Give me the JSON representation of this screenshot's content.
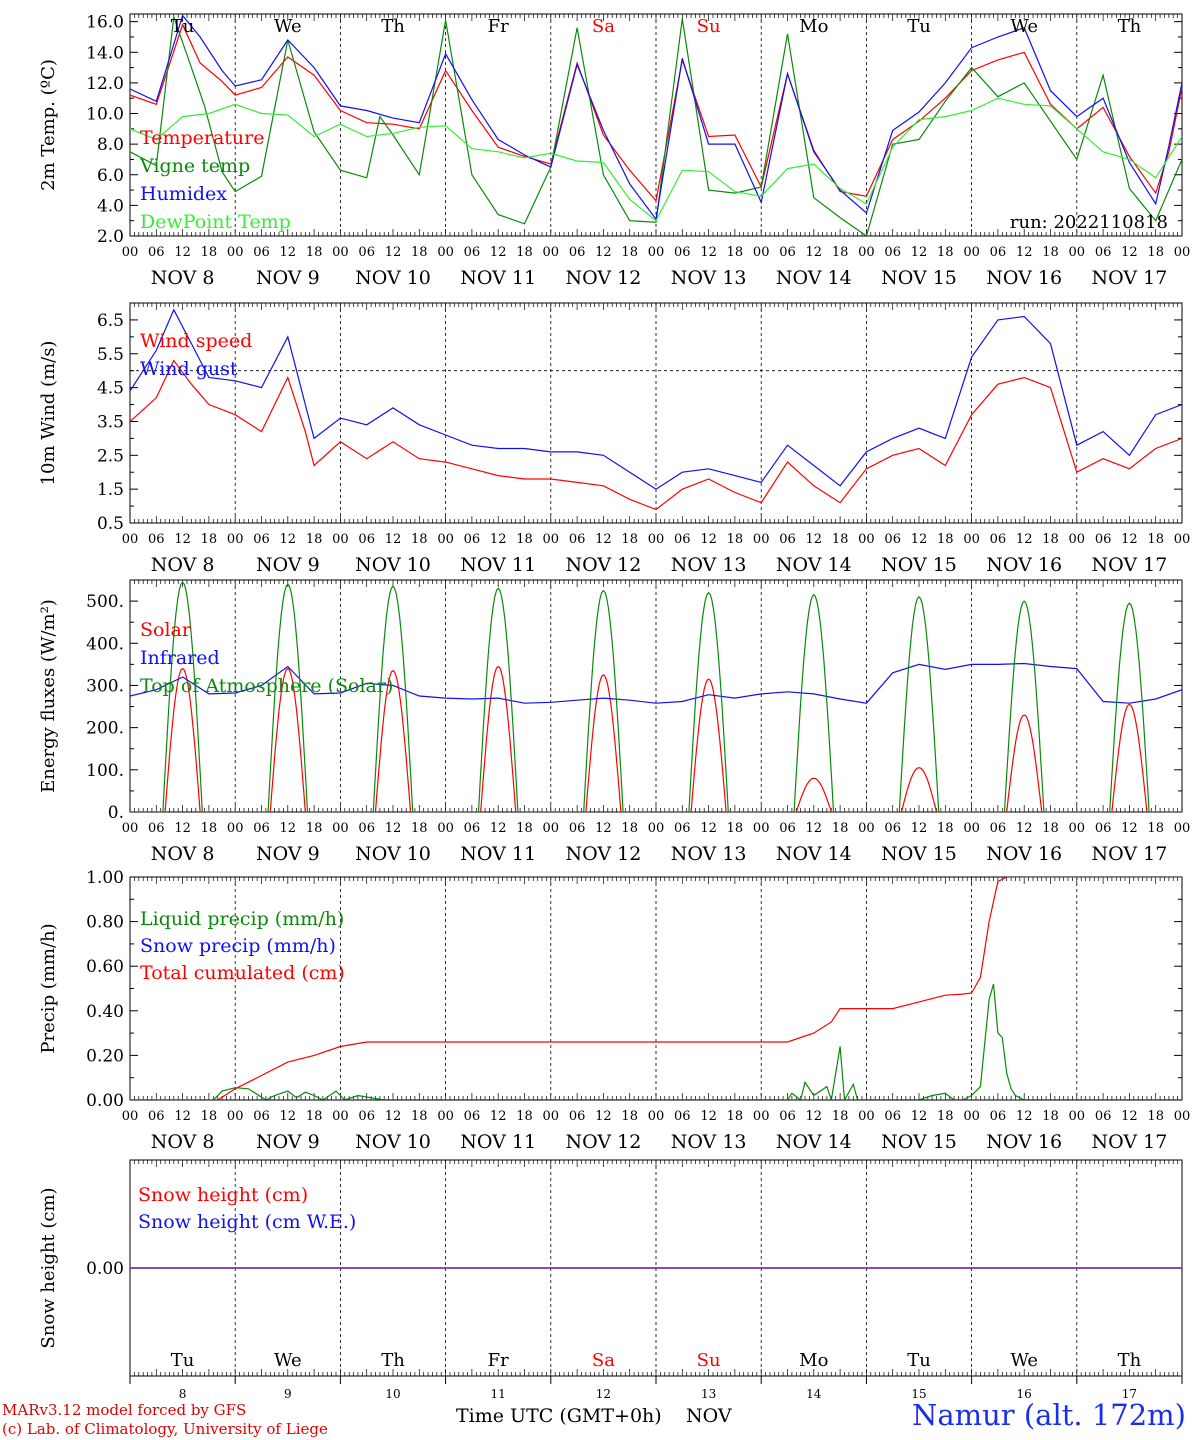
{
  "footer": {
    "credit_line1": "MARv3.12 model forced by GFS",
    "credit_line2": "(c) Lab. of Climatology, University of Liege",
    "x_axis_label": "Time UTC (GMT+0h)",
    "x_axis_month": "NOV",
    "station": "Namur (alt. 172m)"
  },
  "colors": {
    "red": "#ff0000",
    "green": "#0a8a0a",
    "blue": "#1010f0",
    "light_green": "#33ee33",
    "purple": "#8030b0",
    "weekend": "#ff0000"
  },
  "time_axis": {
    "tick_hours": [
      "00",
      "06",
      "12",
      "18"
    ],
    "date_labels": [
      "NOV  8",
      "NOV  9",
      "NOV 10",
      "NOV 11",
      "NOV 12",
      "NOV 13",
      "NOV 14",
      "NOV 15",
      "NOV 16",
      "NOV 17"
    ],
    "day_names": [
      "Tu",
      "We",
      "Th",
      "Fr",
      "Sa",
      "Su",
      "Mo",
      "Tu",
      "We",
      "Th"
    ],
    "weekend_days": [
      "Sa",
      "Su"
    ],
    "day_numbers": [
      "8",
      "9",
      "10",
      "11",
      "12",
      "13",
      "14",
      "15",
      "16",
      "17"
    ]
  },
  "chart_data": [
    {
      "type": "line",
      "id": "temperature",
      "ylabel": "2m Temp. (ºC)",
      "ylim": [
        2.0,
        16.5
      ],
      "yticks": [
        "2.0",
        "4.0",
        "6.0",
        "8.0",
        "10.0",
        "12.0",
        "14.0",
        "16.0"
      ],
      "ytick_values": [
        2,
        4,
        6,
        8,
        10,
        12,
        14,
        16
      ],
      "annotation": "run: 2022110818",
      "x_unit": "hours since NOV 8 00 UTC",
      "series": [
        {
          "name": "Temperature",
          "color": "#ff0000",
          "x": [
            0,
            6,
            12,
            16,
            21,
            24,
            30,
            36,
            42,
            48,
            54,
            60,
            66,
            72,
            78,
            84,
            90,
            96,
            102,
            108,
            114,
            120,
            126,
            132,
            138,
            144,
            150,
            156,
            162,
            168,
            174,
            180,
            186,
            192,
            198,
            204,
            210,
            216,
            222,
            228,
            234,
            237,
            240
          ],
          "y": [
            11.2,
            10.6,
            15.8,
            13.3,
            12.1,
            11.2,
            11.7,
            13.7,
            12.5,
            10.2,
            9.4,
            9.3,
            9.0,
            12.8,
            10.2,
            7.8,
            7.2,
            6.7,
            13.3,
            8.6,
            6.3,
            4.3,
            13.5,
            8.5,
            8.6,
            5.2,
            12.6,
            7.6,
            4.9,
            4.6,
            8.3,
            9.5,
            11.0,
            12.8,
            13.5,
            14.0,
            10.6,
            9.0,
            10.4,
            7.2,
            4.8,
            7.5,
            11.7
          ]
        },
        {
          "name": "Vigne temp",
          "color": "#0a8a0a",
          "x": [
            0,
            6,
            10,
            14,
            17,
            21,
            24,
            30,
            36,
            42,
            48,
            54,
            57,
            60,
            66,
            72,
            78,
            84,
            90,
            96,
            102,
            108,
            114,
            120,
            126,
            132,
            138,
            144,
            150,
            156,
            162,
            168,
            174,
            180,
            186,
            192,
            198,
            204,
            210,
            216,
            222,
            228,
            234,
            240
          ],
          "y": [
            7.5,
            6.6,
            16.3,
            13.0,
            10.5,
            6.2,
            4.9,
            5.9,
            14.8,
            8.8,
            6.3,
            5.8,
            9.8,
            8.6,
            6.0,
            16.1,
            6.0,
            3.4,
            2.8,
            6.5,
            15.6,
            6.0,
            3.0,
            2.9,
            16.2,
            5.0,
            4.8,
            5.2,
            15.2,
            4.5,
            3.2,
            2.0,
            8.0,
            8.3,
            10.8,
            13.0,
            11.1,
            12.0,
            9.5,
            7.0,
            12.5,
            5.1,
            3.0,
            7.0
          ]
        },
        {
          "name": "Humidex",
          "color": "#1010f0",
          "x": [
            0,
            6,
            12,
            16,
            21,
            24,
            30,
            36,
            42,
            48,
            54,
            60,
            66,
            72,
            78,
            84,
            90,
            96,
            102,
            108,
            114,
            120,
            126,
            132,
            138,
            144,
            150,
            156,
            162,
            168,
            174,
            180,
            186,
            192,
            198,
            204,
            210,
            216,
            222,
            228,
            234,
            237,
            240
          ],
          "y": [
            11.6,
            10.8,
            16.4,
            15.0,
            12.8,
            11.8,
            12.2,
            14.8,
            13.0,
            10.5,
            10.2,
            9.7,
            9.4,
            13.9,
            10.9,
            8.3,
            7.3,
            6.5,
            13.2,
            8.9,
            5.4,
            3.1,
            13.6,
            8.0,
            8.0,
            4.2,
            12.6,
            7.5,
            5.0,
            3.5,
            8.9,
            10.1,
            12.0,
            14.3,
            15.0,
            15.6,
            11.5,
            9.8,
            11.0,
            6.8,
            4.1,
            7.9,
            12.0
          ]
        },
        {
          "name": "DewPoint Temp",
          "color": "#33ee33",
          "x": [
            0,
            6,
            12,
            18,
            24,
            30,
            36,
            42,
            48,
            54,
            60,
            66,
            72,
            78,
            84,
            90,
            96,
            102,
            108,
            114,
            120,
            126,
            132,
            138,
            144,
            150,
            156,
            162,
            168,
            174,
            180,
            186,
            192,
            198,
            204,
            210,
            216,
            222,
            228,
            234,
            240
          ],
          "y": [
            9.0,
            8.3,
            9.8,
            10.0,
            10.6,
            10.0,
            9.9,
            8.5,
            9.3,
            8.5,
            8.7,
            9.1,
            9.2,
            7.7,
            7.5,
            7.1,
            7.4,
            6.9,
            6.8,
            4.4,
            3.0,
            6.3,
            6.2,
            4.9,
            4.6,
            6.4,
            6.7,
            5.1,
            4.1,
            7.8,
            9.6,
            9.8,
            10.2,
            11.0,
            10.6,
            10.5,
            9.0,
            7.5,
            7.0,
            5.8,
            8.5
          ]
        }
      ]
    },
    {
      "type": "line",
      "id": "wind",
      "ylabel": "10m Wind (m/s)",
      "ylim": [
        0.5,
        7.0
      ],
      "yticks": [
        "0.5",
        "1.5",
        "2.5",
        "3.5",
        "4.5",
        "5.5",
        "6.5"
      ],
      "ytick_values": [
        0.5,
        1.5,
        2.5,
        3.5,
        4.5,
        5.5,
        6.5
      ],
      "reference_line": 5.0,
      "x_unit": "hours since NOV 8 00 UTC",
      "series": [
        {
          "name": "Wind speed",
          "color": "#ff0000",
          "x": [
            0,
            6,
            10,
            14,
            18,
            24,
            30,
            36,
            40,
            42,
            48,
            54,
            60,
            66,
            72,
            78,
            84,
            90,
            96,
            102,
            108,
            114,
            120,
            126,
            132,
            138,
            144,
            150,
            156,
            162,
            168,
            174,
            180,
            186,
            192,
            198,
            204,
            210,
            216,
            222,
            228,
            234,
            240
          ],
          "y": [
            3.5,
            4.2,
            5.3,
            4.6,
            4.0,
            3.7,
            3.2,
            4.8,
            3.2,
            2.2,
            2.9,
            2.4,
            2.9,
            2.4,
            2.3,
            2.1,
            1.9,
            1.8,
            1.8,
            1.7,
            1.6,
            1.2,
            0.9,
            1.5,
            1.8,
            1.4,
            1.1,
            2.3,
            1.6,
            1.1,
            2.1,
            2.5,
            2.7,
            2.2,
            3.7,
            4.6,
            4.8,
            4.5,
            2.0,
            2.4,
            2.1,
            2.7,
            3.0
          ]
        },
        {
          "name": "Wind gust",
          "color": "#1010f0",
          "x": [
            0,
            6,
            10,
            14,
            18,
            24,
            30,
            36,
            40,
            42,
            48,
            54,
            60,
            66,
            72,
            78,
            84,
            90,
            96,
            102,
            108,
            114,
            120,
            126,
            132,
            138,
            144,
            150,
            156,
            162,
            168,
            174,
            180,
            186,
            192,
            198,
            204,
            210,
            216,
            222,
            228,
            234,
            240
          ],
          "y": [
            4.4,
            5.6,
            6.8,
            5.8,
            4.8,
            4.7,
            4.5,
            6.0,
            4.0,
            3.0,
            3.6,
            3.4,
            3.9,
            3.4,
            3.1,
            2.8,
            2.7,
            2.7,
            2.6,
            2.6,
            2.5,
            2.0,
            1.5,
            2.0,
            2.1,
            1.9,
            1.7,
            2.8,
            2.2,
            1.6,
            2.6,
            3.0,
            3.3,
            3.0,
            5.4,
            6.5,
            6.6,
            5.8,
            2.8,
            3.2,
            2.5,
            3.7,
            4.0
          ]
        }
      ]
    },
    {
      "type": "line",
      "id": "energy",
      "ylabel": "Energy fluxes (W/m²)",
      "ylim": [
        0,
        550
      ],
      "yticks": [
        "0.",
        "100.",
        "200.",
        "300.",
        "400.",
        "500."
      ],
      "ytick_values": [
        0,
        100,
        200,
        300,
        400,
        500
      ],
      "x_unit": "hours since NOV 8 00 UTC",
      "series": [
        {
          "name": "Solar",
          "color": "#ff0000",
          "kind": "daily_arch",
          "peak_hour": 12,
          "half_width_hours": 4.0,
          "daily_peaks": [
            340,
            340,
            335,
            345,
            325,
            315,
            80,
            105,
            230,
            255
          ]
        },
        {
          "name": "Infrared",
          "color": "#1010f0",
          "x": [
            0,
            6,
            12,
            18,
            24,
            30,
            36,
            42,
            48,
            54,
            60,
            66,
            72,
            78,
            84,
            90,
            96,
            102,
            108,
            114,
            120,
            126,
            132,
            138,
            144,
            150,
            156,
            162,
            168,
            174,
            180,
            186,
            192,
            198,
            204,
            210,
            216,
            222,
            228,
            234,
            240
          ],
          "y": [
            275,
            290,
            320,
            280,
            282,
            300,
            345,
            280,
            282,
            305,
            300,
            275,
            270,
            268,
            270,
            258,
            260,
            265,
            270,
            265,
            258,
            262,
            278,
            270,
            280,
            285,
            280,
            268,
            258,
            330,
            350,
            338,
            350,
            350,
            352,
            345,
            340,
            262,
            258,
            268,
            290
          ]
        },
        {
          "name": "Top of Atmosphere (Solar)",
          "color": "#0a8a0a",
          "kind": "daily_arch",
          "peak_hour": 12,
          "half_width_hours": 4.5,
          "daily_peaks": [
            545,
            540,
            535,
            530,
            525,
            520,
            515,
            510,
            500,
            495
          ]
        }
      ]
    },
    {
      "type": "line",
      "id": "precip",
      "ylabel": "Precip (mm/h)",
      "ylim": [
        0,
        1.0
      ],
      "yticks": [
        "0.00",
        "0.20",
        "0.40",
        "0.60",
        "0.80",
        "1.00"
      ],
      "ytick_values": [
        0,
        0.2,
        0.4,
        0.6,
        0.8,
        1.0
      ],
      "x_unit": "hours since NOV 8 00 UTC",
      "series": [
        {
          "name": "Liquid precip (mm/h)",
          "color": "#0a8a0a",
          "x": [
            0,
            19,
            21,
            24,
            27,
            31,
            33,
            36,
            38,
            40,
            42,
            44,
            47,
            49,
            52,
            58,
            150,
            151,
            153,
            154,
            156,
            159,
            160,
            162,
            163,
            165,
            166,
            168,
            180,
            183,
            186,
            188,
            190,
            192,
            194,
            196,
            197,
            198,
            199,
            200,
            201,
            202,
            204,
            206,
            240
          ],
          "y": [
            0,
            0,
            0.04,
            0.055,
            0.05,
            0.0,
            0.02,
            0.04,
            0.01,
            0.035,
            0.02,
            0.0,
            0.04,
            0.0,
            0.02,
            0,
            0,
            0.03,
            0.0,
            0.08,
            0.02,
            0.06,
            0.0,
            0.24,
            0.0,
            0.07,
            0.0,
            0,
            0,
            0.02,
            0.03,
            0.0,
            0,
            0.02,
            0.06,
            0.45,
            0.52,
            0.3,
            0.28,
            0.12,
            0.05,
            0.02,
            0,
            0,
            0
          ]
        },
        {
          "name": "Snow precip (mm/h)",
          "color": "#1010f0",
          "x": [
            0,
            240
          ],
          "y": [
            0,
            0
          ]
        },
        {
          "name": "Total cumulated (cm)",
          "color": "#ff0000",
          "x": [
            0,
            20,
            24,
            30,
            36,
            42,
            48,
            54,
            60,
            150,
            156,
            160,
            162,
            168,
            174,
            180,
            186,
            190,
            192,
            194,
            196,
            198,
            200,
            204,
            210,
            240
          ],
          "y": [
            0,
            0,
            0.05,
            0.11,
            0.17,
            0.2,
            0.24,
            0.26,
            0.26,
            0.26,
            0.3,
            0.35,
            0.41,
            0.41,
            0.41,
            0.44,
            0.47,
            0.475,
            0.48,
            0.55,
            0.8,
            0.98,
            1.0,
            1.0,
            1.0,
            1.0
          ]
        }
      ]
    },
    {
      "type": "line",
      "id": "snow",
      "ylabel": "Snow height (cm)",
      "ylim": [
        -1.0,
        1.0
      ],
      "yticks": [
        "0.00"
      ],
      "ytick_values": [
        0
      ],
      "x_unit": "hours since NOV 8 00 UTC",
      "series": [
        {
          "name": "Snow height (cm)",
          "color": "#ff0000",
          "x": [
            0,
            240
          ],
          "y": [
            0,
            0
          ]
        },
        {
          "name": "Snow height (cm W.E.)",
          "color": "#1010f0",
          "x": [
            0,
            240
          ],
          "y": [
            0,
            0
          ]
        }
      ]
    }
  ]
}
